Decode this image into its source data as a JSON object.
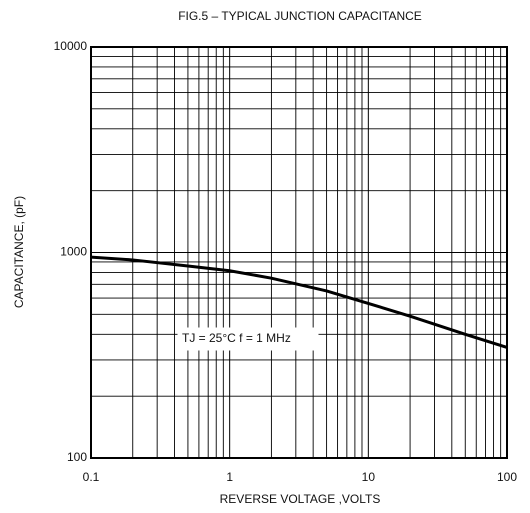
{
  "chart_data": {
    "type": "line",
    "title": "FIG.5 – TYPICAL JUNCTION CAPACITANCE",
    "xlabel": "REVERSE VOLTAGE ,VOLTS",
    "ylabel": "CAPACITANCE, (pF)",
    "annotation": "TJ = 25°C  f = 1 MHz",
    "x": [
      0.1,
      0.2,
      0.5,
      1,
      2,
      5,
      10,
      20,
      50,
      100
    ],
    "series": [
      {
        "name": "Capacitance",
        "color": "#000000",
        "values": [
          950,
          920,
          860,
          815,
          750,
          650,
          565,
          490,
          400,
          345
        ]
      }
    ],
    "xlim": [
      0.1,
      100
    ],
    "xticks": [
      0.1,
      1,
      10,
      100
    ],
    "ylim": [
      100,
      10000
    ],
    "yticks": [
      100,
      1000,
      10000
    ],
    "xscale": "log",
    "yscale": "log",
    "grid": true
  }
}
